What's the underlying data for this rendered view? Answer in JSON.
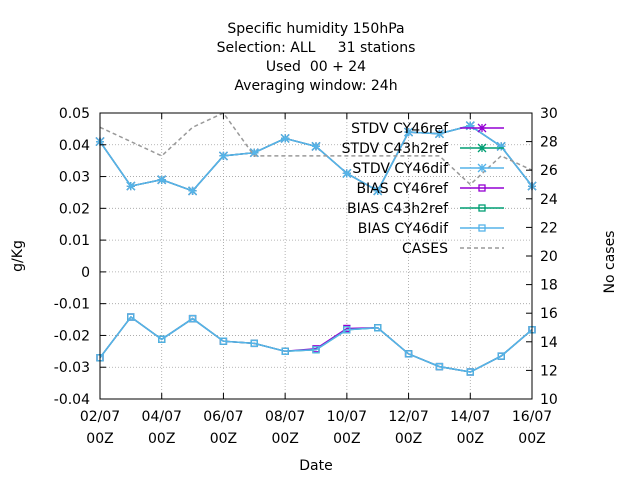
{
  "chart_data": {
    "type": "line",
    "title_lines": [
      "Specific humidity 150hPa",
      "Selection: ALL     31 stations",
      "Used  00 + 24",
      "Averaging window: 24h"
    ],
    "xlabel": "Date",
    "ylabel": "g/Kg",
    "y2label": "No cases",
    "x": [
      2,
      3,
      4,
      5,
      6,
      7,
      8,
      9,
      10,
      11,
      12,
      13,
      14,
      15,
      16
    ],
    "xlim": [
      2,
      16
    ],
    "ylim": [
      -0.04,
      0.05
    ],
    "y2lim": [
      10,
      30
    ],
    "x_ticks": [
      {
        "x": 2,
        "line1": "02/07",
        "line2": "00Z"
      },
      {
        "x": 4,
        "line1": "04/07",
        "line2": "00Z"
      },
      {
        "x": 6,
        "line1": "06/07",
        "line2": "00Z"
      },
      {
        "x": 8,
        "line1": "08/07",
        "line2": "00Z"
      },
      {
        "x": 10,
        "line1": "10/07",
        "line2": "00Z"
      },
      {
        "x": 12,
        "line1": "12/07",
        "line2": "00Z"
      },
      {
        "x": 14,
        "line1": "14/07",
        "line2": "00Z"
      },
      {
        "x": 16,
        "line1": "16/07",
        "line2": "00Z"
      }
    ],
    "y_ticks": [
      "-0.04",
      "-0.03",
      "-0.02",
      "-0.01",
      "0",
      "0.01",
      "0.02",
      "0.03",
      "0.04",
      "0.05"
    ],
    "y2_ticks": [
      "10",
      "12",
      "14",
      "16",
      "18",
      "20",
      "22",
      "24",
      "26",
      "28",
      "30"
    ],
    "grid": true,
    "legend_position": "top-right",
    "series": [
      {
        "name": "STDV CY46ref",
        "axis": "y",
        "color": "#9400d3",
        "marker": "star",
        "dash": "",
        "values": [
          0.041,
          0.027,
          0.029,
          0.0255,
          0.0365,
          0.0375,
          0.042,
          0.0395,
          0.031,
          0.0255,
          0.044,
          0.0435,
          0.046,
          0.0395,
          0.027
        ]
      },
      {
        "name": "STDV C43h2ref",
        "axis": "y",
        "color": "#009e73",
        "marker": "star",
        "dash": "",
        "values": [
          0.041,
          0.027,
          0.029,
          0.0255,
          0.0365,
          0.0375,
          0.042,
          0.0395,
          0.031,
          0.0255,
          0.044,
          0.0435,
          0.046,
          0.0395,
          0.027
        ]
      },
      {
        "name": "STDV CY46dif",
        "axis": "y",
        "color": "#56b4e9",
        "marker": "star",
        "dash": "",
        "values": [
          0.041,
          0.027,
          0.029,
          0.0255,
          0.0365,
          0.0375,
          0.042,
          0.0395,
          0.031,
          0.0255,
          0.044,
          0.0435,
          0.046,
          0.0395,
          0.027
        ]
      },
      {
        "name": "BIAS CY46ref",
        "axis": "y",
        "color": "#9400d3",
        "marker": "square",
        "dash": "",
        "values": [
          -0.027,
          -0.0142,
          -0.0212,
          -0.0147,
          -0.0218,
          -0.0225,
          -0.025,
          -0.0242,
          -0.0178,
          -0.0176,
          -0.0258,
          -0.0298,
          -0.0315,
          -0.0265,
          -0.0182
        ]
      },
      {
        "name": "BIAS C43h2ref",
        "axis": "y",
        "color": "#009e73",
        "marker": "square",
        "dash": "",
        "values": [
          -0.027,
          -0.0142,
          -0.0212,
          -0.0147,
          -0.0218,
          -0.0225,
          -0.025,
          -0.0245,
          -0.0182,
          -0.0176,
          -0.0258,
          -0.0298,
          -0.0315,
          -0.0265,
          -0.0182
        ]
      },
      {
        "name": "BIAS CY46dif",
        "axis": "y",
        "color": "#56b4e9",
        "marker": "square",
        "dash": "",
        "values": [
          -0.027,
          -0.0142,
          -0.0212,
          -0.0147,
          -0.0218,
          -0.0225,
          -0.025,
          -0.0245,
          -0.0182,
          -0.0176,
          -0.0258,
          -0.0298,
          -0.0315,
          -0.0265,
          -0.0182
        ]
      },
      {
        "name": "CASES",
        "axis": "y2",
        "color": "#999999",
        "marker": "none",
        "dash": "4,3",
        "values": [
          29,
          28,
          27,
          29,
          30,
          27,
          27,
          27,
          27,
          27,
          27,
          27,
          25,
          27,
          26
        ]
      }
    ]
  }
}
